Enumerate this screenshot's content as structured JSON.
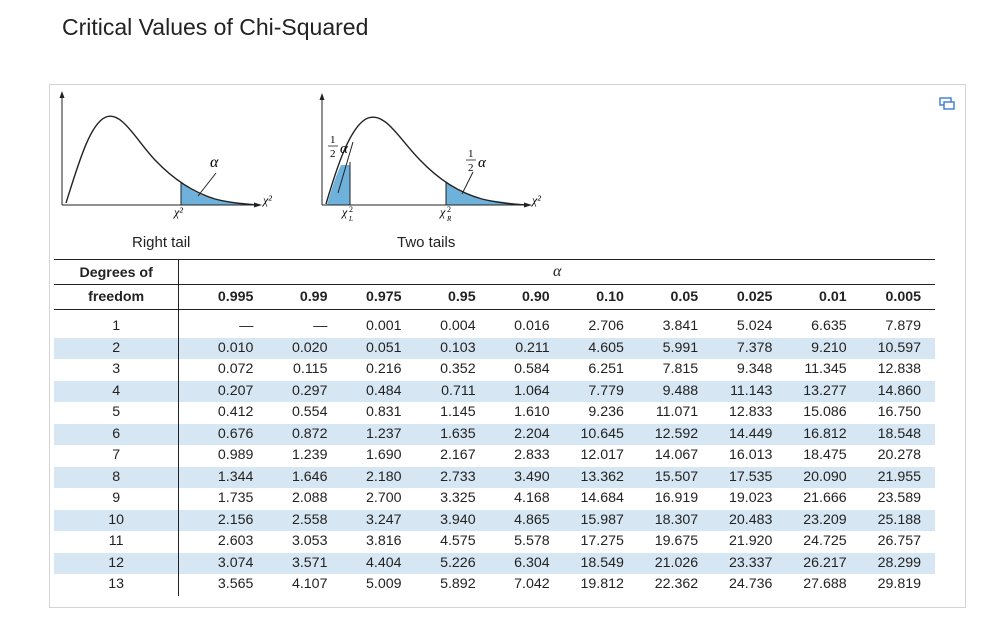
{
  "page": {
    "title": "Critical Values of Chi-Squared"
  },
  "diagrams": {
    "right_caption": "Right tail",
    "two_caption": "Two tails",
    "alpha": "α",
    "half": "1",
    "half_den": "2",
    "chi2": "χ²",
    "chi2L": "χ",
    "chi2R": "χ",
    "sub_L": "L",
    "sub_R": "R",
    "sup": "2",
    "fill_color": "#6eb2dc"
  },
  "table": {
    "df_label_1": "Degrees of",
    "df_label_2": "freedom",
    "alpha_label": "α",
    "columns": [
      "0.995",
      "0.99",
      "0.975",
      "0.95",
      "0.90",
      "0.10",
      "0.05",
      "0.025",
      "0.01",
      "0.005"
    ],
    "rows": [
      [
        "1",
        "—",
        "—",
        "0.001",
        "0.004",
        "0.016",
        "2.706",
        "3.841",
        "5.024",
        "6.635",
        "7.879"
      ],
      [
        "2",
        "0.010",
        "0.020",
        "0.051",
        "0.103",
        "0.211",
        "4.605",
        "5.991",
        "7.378",
        "9.210",
        "10.597"
      ],
      [
        "3",
        "0.072",
        "0.115",
        "0.216",
        "0.352",
        "0.584",
        "6.251",
        "7.815",
        "9.348",
        "11.345",
        "12.838"
      ],
      [
        "4",
        "0.207",
        "0.297",
        "0.484",
        "0.711",
        "1.064",
        "7.779",
        "9.488",
        "11.143",
        "13.277",
        "14.860"
      ],
      [
        "5",
        "0.412",
        "0.554",
        "0.831",
        "1.145",
        "1.610",
        "9.236",
        "11.071",
        "12.833",
        "15.086",
        "16.750"
      ],
      [
        "6",
        "0.676",
        "0.872",
        "1.237",
        "1.635",
        "2.204",
        "10.645",
        "12.592",
        "14.449",
        "16.812",
        "18.548"
      ],
      [
        "7",
        "0.989",
        "1.239",
        "1.690",
        "2.167",
        "2.833",
        "12.017",
        "14.067",
        "16.013",
        "18.475",
        "20.278"
      ],
      [
        "8",
        "1.344",
        "1.646",
        "2.180",
        "2.733",
        "3.490",
        "13.362",
        "15.507",
        "17.535",
        "20.090",
        "21.955"
      ],
      [
        "9",
        "1.735",
        "2.088",
        "2.700",
        "3.325",
        "4.168",
        "14.684",
        "16.919",
        "19.023",
        "21.666",
        "23.589"
      ],
      [
        "10",
        "2.156",
        "2.558",
        "3.247",
        "3.940",
        "4.865",
        "15.987",
        "18.307",
        "20.483",
        "23.209",
        "25.188"
      ],
      [
        "11",
        "2.603",
        "3.053",
        "3.816",
        "4.575",
        "5.578",
        "17.275",
        "19.675",
        "21.920",
        "24.725",
        "26.757"
      ],
      [
        "12",
        "3.074",
        "3.571",
        "4.404",
        "5.226",
        "6.304",
        "18.549",
        "21.026",
        "23.337",
        "26.217",
        "28.299"
      ],
      [
        "13",
        "3.565",
        "4.107",
        "5.009",
        "5.892",
        "7.042",
        "19.812",
        "22.362",
        "24.736",
        "27.688",
        "29.819"
      ]
    ]
  }
}
